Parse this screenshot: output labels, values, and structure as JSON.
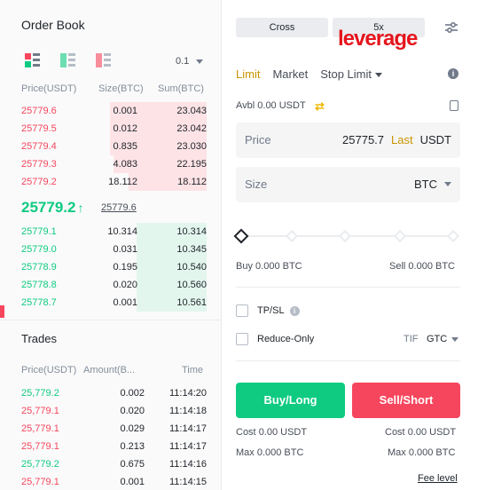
{
  "orderbook": {
    "title": "Order Book",
    "precision": "0.1",
    "headers": {
      "price": "Price(USDT)",
      "size": "Size(BTC)",
      "sum": "Sum(BTC)"
    },
    "asks": [
      {
        "price": "25779.6",
        "size": "0.001",
        "sum": "23.043",
        "depth": 0.52
      },
      {
        "price": "25779.5",
        "size": "0.012",
        "sum": "23.042",
        "depth": 0.52
      },
      {
        "price": "25779.4",
        "size": "0.835",
        "sum": "23.030",
        "depth": 0.52
      },
      {
        "price": "25779.3",
        "size": "4.083",
        "sum": "22.195",
        "depth": 0.5
      },
      {
        "price": "25779.2",
        "size": "18.112",
        "sum": "18.112",
        "depth": 0.42
      }
    ],
    "last_price": "25779.2",
    "last_arrow": "↑",
    "mark_price": "25779.6",
    "bids": [
      {
        "price": "25779.1",
        "size": "10.314",
        "sum": "10.314",
        "depth": 0.38
      },
      {
        "price": "25779.0",
        "size": "0.031",
        "sum": "10.345",
        "depth": 0.38
      },
      {
        "price": "25778.9",
        "size": "0.195",
        "sum": "10.540",
        "depth": 0.38
      },
      {
        "price": "25778.8",
        "size": "0.020",
        "sum": "10.560",
        "depth": 0.38
      },
      {
        "price": "25778.7",
        "size": "0.001",
        "sum": "10.561",
        "depth": 0.38
      }
    ]
  },
  "trades": {
    "title": "Trades",
    "headers": {
      "price": "Price(USDT)",
      "amount": "Amount(B...",
      "time": "Time"
    },
    "rows": [
      {
        "price": "25,779.2",
        "amount": "0.002",
        "time": "11:14:20",
        "side": "up"
      },
      {
        "price": "25,779.1",
        "amount": "0.020",
        "time": "11:14:18",
        "side": "dn"
      },
      {
        "price": "25,779.1",
        "amount": "0.029",
        "time": "11:14:17",
        "side": "dn"
      },
      {
        "price": "25,779.1",
        "amount": "0.213",
        "time": "11:14:17",
        "side": "dn"
      },
      {
        "price": "25,779.2",
        "amount": "0.675",
        "time": "11:14:16",
        "side": "up"
      },
      {
        "price": "25,779.1",
        "amount": "0.001",
        "time": "11:14:15",
        "side": "dn"
      }
    ]
  },
  "order_form": {
    "margin_mode": "Cross",
    "leverage": "5x",
    "leverage_label": "leverage",
    "tabs": [
      "Limit",
      "Market",
      "Stop Limit"
    ],
    "active_tab": "Limit",
    "avbl_label": "Avbl",
    "avbl_value": "0.00 USDT",
    "price_label": "Price",
    "price_value": "25775.7",
    "price_last": "Last",
    "price_unit": "USDT",
    "size_label": "Size",
    "size_unit": "BTC",
    "slider_value": 0,
    "buy_label": "Buy",
    "buy_value": "0.000 BTC",
    "sell_label": "Sell",
    "sell_value": "0.000 BTC",
    "tpsl_label": "TP/SL",
    "reduce_only_label": "Reduce-Only",
    "tif_label": "TIF",
    "tif_value": "GTC",
    "buy_button": "Buy/Long",
    "sell_button": "Sell/Short",
    "cost_label": "Cost",
    "cost_buy": "0.00 USDT",
    "cost_sell": "0.00 USDT",
    "max_label": "Max",
    "max_buy": "0.000 BTC",
    "max_sell": "0.000 BTC",
    "fee_level": "Fee level"
  },
  "colors": {
    "ask": "#f6465d",
    "bid": "#0ecb81",
    "accent": "#c99400",
    "leverage_brand": "#e5151d"
  }
}
